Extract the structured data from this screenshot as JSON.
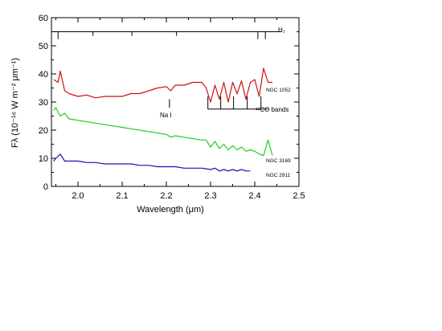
{
  "chart_data": {
    "type": "line",
    "xlabel": "Wavelength (μm)",
    "ylabel": "Fλ (10⁻¹⁶ W m⁻² μm⁻¹)",
    "xlim": [
      1.94,
      2.5
    ],
    "ylim": [
      0,
      60
    ],
    "x_ticks": [
      "2.0",
      "2.1",
      "2.2",
      "2.3",
      "2.4",
      "2.5"
    ],
    "y_ticks": [
      "0",
      "10",
      "20",
      "30",
      "40",
      "50",
      "60"
    ],
    "grid": false,
    "series": [
      {
        "name": "NGC 1052",
        "color": "#cc1111",
        "x": [
          1.945,
          1.955,
          1.96,
          1.97,
          1.98,
          2.0,
          2.02,
          2.04,
          2.06,
          2.08,
          2.1,
          2.12,
          2.14,
          2.16,
          2.18,
          2.2,
          2.21,
          2.22,
          2.24,
          2.26,
          2.28,
          2.29,
          2.3,
          2.31,
          2.32,
          2.33,
          2.34,
          2.35,
          2.36,
          2.37,
          2.38,
          2.39,
          2.4,
          2.41,
          2.42,
          2.43,
          2.44
        ],
        "y": [
          38,
          37,
          41,
          34,
          33,
          32,
          32.5,
          31.5,
          32,
          32,
          32,
          33,
          33,
          34,
          35,
          35.5,
          34,
          36,
          36,
          37,
          37,
          35,
          30,
          36,
          31,
          37,
          30,
          37,
          33,
          37.5,
          31,
          37,
          38,
          32,
          42,
          37,
          37
        ]
      },
      {
        "name": "NGC 3169",
        "color": "#22cc22",
        "x": [
          1.945,
          1.95,
          1.96,
          1.97,
          1.98,
          2.0,
          2.02,
          2.04,
          2.06,
          2.08,
          2.1,
          2.12,
          2.14,
          2.16,
          2.18,
          2.2,
          2.21,
          2.22,
          2.24,
          2.26,
          2.28,
          2.29,
          2.3,
          2.31,
          2.32,
          2.33,
          2.34,
          2.35,
          2.36,
          2.37,
          2.38,
          2.39,
          2.4,
          2.41,
          2.42,
          2.43,
          2.44
        ],
        "y": [
          27,
          28,
          25,
          26,
          24,
          23.5,
          23,
          22.5,
          22,
          21.5,
          21,
          20.5,
          20,
          19.5,
          19,
          18.5,
          17.5,
          18,
          17.5,
          17,
          16.5,
          16.5,
          14,
          16,
          13.5,
          15,
          13,
          14.5,
          13,
          14,
          12.5,
          13,
          12.5,
          11.5,
          11,
          16.5,
          11
        ]
      },
      {
        "name": "NGC 2911",
        "color": "#1111bb",
        "x": [
          1.945,
          1.95,
          1.96,
          1.97,
          1.98,
          2.0,
          2.02,
          2.04,
          2.06,
          2.08,
          2.1,
          2.12,
          2.14,
          2.16,
          2.18,
          2.2,
          2.22,
          2.24,
          2.26,
          2.28,
          2.3,
          2.31,
          2.32,
          2.33,
          2.34,
          2.35,
          2.36,
          2.37,
          2.38,
          2.39
        ],
        "y": [
          9,
          10,
          11.5,
          9,
          9,
          9,
          8.5,
          8.5,
          8,
          8,
          8,
          8,
          7.5,
          7.5,
          7,
          7,
          7,
          6.5,
          6.5,
          6.5,
          6,
          6.5,
          5.5,
          6,
          5.5,
          6,
          5.5,
          6,
          5.5,
          5.5
        ]
      }
    ],
    "annotations": {
      "h2": {
        "label": "H₂",
        "y": 55,
        "x_start": 1.94,
        "x_end": 2.46,
        "ticks_x": [
          1.955,
          2.034,
          2.122,
          2.223,
          2.407,
          2.424
        ],
        "tick_heights": [
          "long",
          "short",
          "short",
          "short",
          "long",
          "long"
        ]
      },
      "nai": {
        "label": "Na I",
        "x": 2.207,
        "y_top": 31,
        "y_bottom": 28
      },
      "co": {
        "label": "¹²CO bands",
        "ticks_x": [
          2.294,
          2.323,
          2.352,
          2.383,
          2.414
        ],
        "y_top": 32,
        "y_line": 27.5,
        "x_end": 2.43
      }
    }
  },
  "labels": {
    "ngc1052": "NGC 1052",
    "ngc3169": "NGC 3169",
    "ngc2911": "NGC 2911",
    "h2": "H₂",
    "nai": "Na I",
    "co": "¹²CO bands",
    "xlabel": "Wavelength (μm)",
    "ylabel": "Fλ (10⁻¹⁶ W m⁻² μm⁻¹)"
  }
}
